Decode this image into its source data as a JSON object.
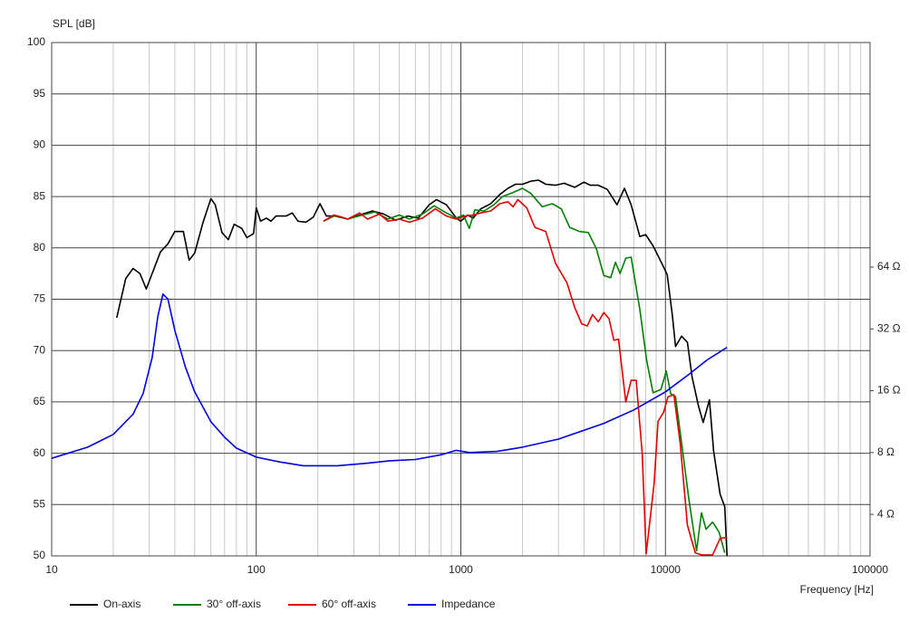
{
  "chart_data": {
    "type": "line",
    "y_label": "SPL [dB]",
    "x_label": "Frequency [Hz]",
    "xscale": "log",
    "y2scale": "log",
    "xlim": [
      10,
      100000
    ],
    "xticks": [
      10,
      100,
      1000,
      10000,
      100000
    ],
    "ylim": [
      50,
      100
    ],
    "yticks": [
      50,
      55,
      60,
      65,
      70,
      75,
      80,
      85,
      90,
      95,
      100
    ],
    "y2lim": [
      2.51,
      794
    ],
    "y2ticks": [
      {
        "value": 4,
        "label": "4 Ω"
      },
      {
        "value": 8,
        "label": "8 Ω"
      },
      {
        "value": 16,
        "label": "16 Ω"
      },
      {
        "value": 32,
        "label": "32 Ω"
      },
      {
        "value": 64,
        "label": "64 Ω"
      }
    ],
    "grid": true,
    "minor_grid": true,
    "legend": "bottom",
    "series": [
      {
        "name": "On-axis",
        "color": "#000000",
        "x": [
          20.8,
          23,
          25,
          27,
          29,
          31,
          34,
          37,
          40,
          44,
          47,
          50,
          55,
          60,
          63,
          68,
          73,
          78,
          85,
          90,
          97,
          100,
          105,
          112,
          118,
          125,
          140,
          150,
          160,
          175,
          190,
          205,
          220,
          250,
          280,
          320,
          370,
          420,
          480,
          550,
          620,
          700,
          760,
          850,
          950,
          1000,
          1080,
          1150,
          1250,
          1400,
          1550,
          1700,
          1850,
          2000,
          2200,
          2400,
          2600,
          2900,
          3200,
          3600,
          4000,
          4300,
          4700,
          5200,
          5800,
          6300,
          6800,
          7500,
          8000,
          8700,
          9600,
          10200,
          10800,
          11200,
          12000,
          12800,
          13500,
          14500,
          15300,
          16400,
          17200,
          18500,
          19500,
          20000
        ],
        "values": [
          73.2,
          77,
          78,
          77.5,
          76,
          77.5,
          79.6,
          80.4,
          81.6,
          81.6,
          78.8,
          79.5,
          82.5,
          84.8,
          84.2,
          81.5,
          80.8,
          82.3,
          81.9,
          81,
          81.4,
          83.9,
          82.6,
          82.9,
          82.6,
          83.1,
          83.1,
          83.4,
          82.6,
          82.5,
          83,
          84.3,
          83.1,
          83.1,
          82.8,
          83.2,
          83.6,
          83.3,
          82.7,
          83.1,
          82.9,
          84.2,
          84.7,
          84.2,
          82.9,
          82.6,
          83.2,
          82.9,
          83.8,
          84.3,
          85.2,
          85.8,
          86.2,
          86.2,
          86.5,
          86.6,
          86.2,
          86.1,
          86.3,
          85.9,
          86.4,
          86.1,
          86.1,
          85.7,
          84.2,
          85.8,
          84.2,
          81.1,
          81.3,
          80.2,
          78.5,
          77.4,
          73.5,
          70.4,
          71.4,
          70.8,
          67.4,
          64.6,
          63,
          65.2,
          60.2,
          56,
          54.8,
          50
        ]
      },
      {
        "name": "30° off-axis",
        "color": "#008000",
        "x": [
          213,
          240,
          280,
          330,
          380,
          440,
          500,
          560,
          650,
          740,
          850,
          950,
          1030,
          1100,
          1170,
          1300,
          1450,
          1600,
          1800,
          2000,
          2200,
          2500,
          2800,
          3100,
          3400,
          3800,
          4200,
          4600,
          5000,
          5400,
          5700,
          6000,
          6400,
          6800,
          7500,
          8100,
          8700,
          9500,
          10100,
          10600,
          11200,
          12000,
          13000,
          14200,
          15000,
          15800,
          17000,
          18300,
          19500
        ],
        "values": [
          82.6,
          83.1,
          82.8,
          83.2,
          83.5,
          82.8,
          83.2,
          82.8,
          83.3,
          84.1,
          83.4,
          82.9,
          83.2,
          81.9,
          83.7,
          83.6,
          84.2,
          85,
          85.4,
          85.8,
          85.3,
          84,
          84.3,
          83.8,
          82,
          81.6,
          81.5,
          79.9,
          77.3,
          77.1,
          78.6,
          77.5,
          79,
          79.1,
          74,
          69,
          65.9,
          66.2,
          68,
          65.8,
          65.5,
          61,
          55.6,
          50.5,
          54.2,
          52.6,
          53.3,
          52.3,
          50.3
        ]
      },
      {
        "name": "60° off-axis",
        "color": "#e00000",
        "x": [
          213,
          240,
          280,
          320,
          350,
          400,
          440,
          500,
          560,
          650,
          750,
          850,
          950,
          1050,
          1150,
          1250,
          1400,
          1550,
          1700,
          1800,
          1900,
          2100,
          2300,
          2600,
          2900,
          3300,
          3600,
          3900,
          4150,
          4400,
          4700,
          5000,
          5300,
          5600,
          5900,
          6400,
          6800,
          7200,
          7700,
          8050,
          8800,
          9200,
          9800,
          10300,
          11000,
          11800,
          12800,
          14000,
          15000,
          17000,
          18500,
          20000
        ],
        "values": [
          82.6,
          83.2,
          82.8,
          83.4,
          82.8,
          83.3,
          82.6,
          82.8,
          82.5,
          82.9,
          83.8,
          83.1,
          82.8,
          83.1,
          83.2,
          83.4,
          83.6,
          84.3,
          84.5,
          84,
          84.7,
          83.9,
          82,
          81.6,
          78.5,
          76.6,
          74.2,
          72.6,
          72.4,
          73.5,
          72.8,
          73.7,
          73.1,
          71,
          71.1,
          65,
          67.1,
          67.1,
          60,
          50.2,
          57,
          63.1,
          64,
          65.5,
          65.7,
          61,
          53,
          50.3,
          50.1,
          50.1,
          51.7,
          51.8
        ]
      },
      {
        "name": "Impedance",
        "color": "#0000e0",
        "axis": "y2",
        "x": [
          10,
          15,
          20,
          25,
          28,
          31,
          33,
          35,
          37,
          40,
          45,
          50,
          60,
          70,
          80,
          100,
          130,
          170,
          250,
          350,
          450,
          600,
          800,
          950,
          1100,
          1500,
          2000,
          3000,
          5000,
          7000,
          10000,
          13000,
          16000,
          20000
        ],
        "values": [
          7.5,
          8.5,
          9.8,
          12.3,
          15.5,
          23.2,
          36.7,
          47.3,
          44.7,
          31.5,
          20.9,
          15.8,
          11.3,
          9.5,
          8.4,
          7.6,
          7.2,
          6.9,
          6.9,
          7.1,
          7.3,
          7.4,
          7.8,
          8.2,
          8.0,
          8.1,
          8.5,
          9.3,
          11.1,
          12.9,
          15.8,
          19.2,
          22.6,
          26
        ]
      }
    ]
  }
}
